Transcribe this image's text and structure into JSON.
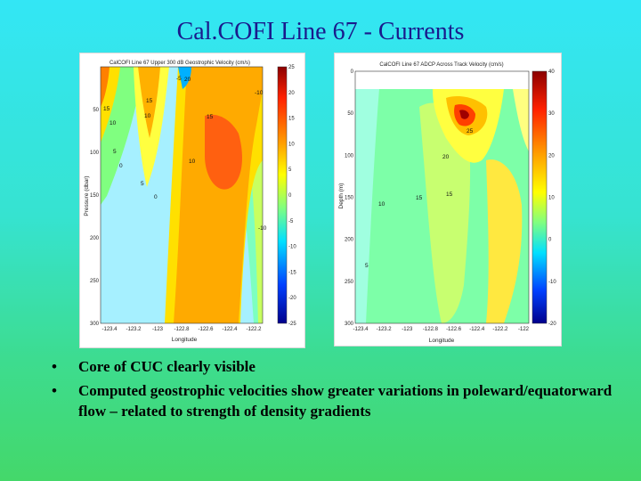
{
  "slide": {
    "title": "Cal.COFI Line 67 - Currents",
    "bullets": [
      "Core of CUC clearly visible",
      "Computed geostrophic velocities show greater variations in poleward/equatorward flow – related to strength of density gradients"
    ]
  },
  "chart_data": [
    {
      "type": "heatmap",
      "title": "CalCOFI Line 67 Upper 300 dB Geostrophic Velocity (cm/s)",
      "xlabel": "Longitude",
      "ylabel": "Pressure (dbar)",
      "x_ticks": [
        "-123.4",
        "-123.2",
        "-123",
        "-122.8",
        "-122.6",
        "-122.4",
        "-122.2"
      ],
      "y_ticks": [
        "50",
        "100",
        "150",
        "200",
        "250",
        "300"
      ],
      "ylim": [
        0,
        300
      ],
      "colorbar_ticks": [
        "25",
        "20",
        "15",
        "10",
        "5",
        "0",
        "-5",
        "-10",
        "-15",
        "-20",
        "-25"
      ],
      "colorbar_range": [
        -25,
        25
      ],
      "contour_labels": [
        "15",
        "10",
        "15",
        "10",
        "5",
        "15",
        "5",
        "10",
        "0",
        "-10",
        "-5",
        "0",
        "20",
        "-10"
      ]
    },
    {
      "type": "heatmap",
      "title": "CalCOFI Line 67 ADCP Across Track Velocity (cm/s)",
      "xlabel": "Longitude",
      "ylabel": "Depth (m)",
      "x_ticks": [
        "-123.4",
        "-123.2",
        "-123",
        "-122.8",
        "-122.6",
        "-122.4",
        "-122.2",
        "-122"
      ],
      "y_ticks": [
        "0",
        "50",
        "100",
        "150",
        "200",
        "250",
        "300"
      ],
      "ylim": [
        0,
        300
      ],
      "colorbar_ticks": [
        "40",
        "30",
        "20",
        "10",
        "0",
        "-10",
        "-20"
      ],
      "colorbar_range": [
        -20,
        40
      ],
      "contour_labels": [
        "25",
        "20",
        "10",
        "15",
        "15",
        "5"
      ]
    }
  ]
}
